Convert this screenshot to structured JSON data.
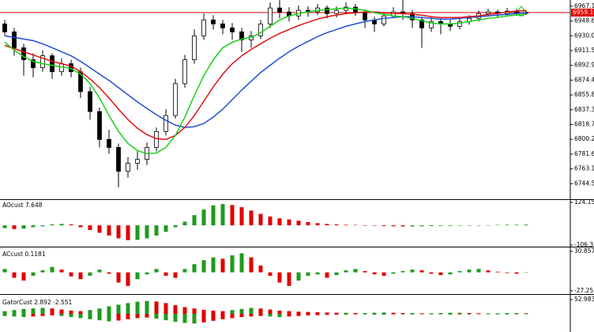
{
  "chart_data": [
    {
      "type": "candlestick",
      "ylim": [
        6725,
        6975
      ],
      "yticks": [
        6967.15,
        {
          "value": 6948.6,
          "label": "6948.60"
        },
        6930.05,
        {
          "value": 6911.5,
          "label": "6911.50"
        },
        6892.95,
        {
          "value": 6874.4,
          "label": "6874.40"
        },
        6855.85,
        {
          "value": 6837.3,
          "label": "6837.30"
        },
        6818.75,
        {
          "value": 6800.2,
          "label": "6800.20"
        },
        6781.65,
        {
          "value": 6763.1,
          "label": "6763.10"
        },
        6744.55
      ],
      "current_price": 6959.19,
      "price_line_color": "#e00000",
      "up_color": "#ffffff",
      "down_color": "#000000",
      "outline_color": "#000000",
      "open": [
        6945,
        6935,
        6915,
        6900,
        6890,
        6905,
        6885,
        6895,
        6885,
        6860,
        6835,
        6800,
        6790,
        6760,
        6770,
        6775,
        6790,
        6810,
        6830,
        6870,
        6900,
        6930,
        6950,
        6945,
        6940,
        6935,
        6925,
        6930,
        6945,
        6965,
        6960,
        6955,
        6962,
        6960,
        6965,
        6958,
        6962,
        6966,
        6960,
        6950,
        6945,
        6955,
        6960,
        6958,
        6950,
        6940,
        6948,
        6945,
        6942,
        6948,
        6952,
        6958,
        6960,
        6958,
        6961,
        6959
      ],
      "high": [
        6950,
        6940,
        6920,
        6908,
        6912,
        6908,
        6902,
        6900,
        6890,
        6866,
        6840,
        6812,
        6795,
        6778,
        6785,
        6796,
        6815,
        6838,
        6876,
        6906,
        6938,
        6958,
        6956,
        6950,
        6946,
        6940,
        6936,
        6950,
        6972,
        6975,
        6966,
        6968,
        6967,
        6970,
        6968,
        6967,
        6972,
        6970,
        6963,
        6954,
        6960,
        6966,
        6975,
        6962,
        6954,
        6953,
        6952,
        6950,
        6952,
        6956,
        6962,
        6964,
        6963,
        6965,
        6964,
        6962
      ],
      "low": [
        6930,
        6905,
        6880,
        6878,
        6885,
        6876,
        6880,
        6878,
        6852,
        6825,
        6790,
        6782,
        6740,
        6752,
        6762,
        6768,
        6785,
        6805,
        6826,
        6865,
        6895,
        6925,
        6938,
        6932,
        6925,
        6910,
        6915,
        6926,
        6940,
        6952,
        6948,
        6950,
        6954,
        6956,
        6952,
        6953,
        6958,
        6955,
        6940,
        6935,
        6942,
        6952,
        6950,
        6940,
        6915,
        6935,
        6932,
        6936,
        6938,
        6944,
        6948,
        6954,
        6953,
        6955,
        6955,
        6956
      ],
      "close": [
        6935,
        6915,
        6900,
        6890,
        6905,
        6885,
        6895,
        6885,
        6860,
        6835,
        6800,
        6790,
        6760,
        6770,
        6775,
        6790,
        6810,
        6830,
        6870,
        6900,
        6930,
        6950,
        6945,
        6940,
        6935,
        6925,
        6930,
        6945,
        6965,
        6960,
        6955,
        6962,
        6960,
        6965,
        6958,
        6962,
        6966,
        6960,
        6950,
        6945,
        6955,
        6960,
        6958,
        6950,
        6940,
        6948,
        6945,
        6942,
        6948,
        6952,
        6958,
        6960,
        6958,
        6961,
        6959,
        6959.19
      ],
      "series": [
        {
          "color": "#1f4fd1",
          "values": [
            6930,
            6928,
            6926,
            6924,
            6920,
            6915,
            6910,
            6905,
            6898,
            6890,
            6882,
            6874,
            6865,
            6856,
            6847,
            6839,
            6831,
            6824,
            6818,
            6815,
            6816,
            6820,
            6828,
            6838,
            6850,
            6862,
            6873,
            6884,
            6893,
            6902,
            6910,
            6917,
            6923,
            6929,
            6934,
            6938,
            6942,
            6945,
            6948,
            6950,
            6952,
            6953,
            6954,
            6954,
            6953,
            6952,
            6951,
            6951,
            6952,
            6953,
            6954,
            6955,
            6956,
            6957,
            6958,
            6959
          ]
        },
        {
          "color": "#e01010",
          "values": [
            6918,
            6914,
            6910,
            6906,
            6902,
            6898,
            6895,
            6892,
            6885,
            6876,
            6865,
            6852,
            6838,
            6825,
            6814,
            6806,
            6801,
            6800,
            6805,
            6815,
            6830,
            6848,
            6866,
            6882,
            6895,
            6905,
            6913,
            6920,
            6927,
            6933,
            6938,
            6943,
            6947,
            6951,
            6954,
            6956,
            6958,
            6959,
            6960,
            6960,
            6959,
            6958,
            6958,
            6957,
            6956,
            6954,
            6953,
            6953,
            6953,
            6954,
            6955,
            6957,
            6958,
            6960,
            6961,
            6962
          ]
        },
        {
          "color": "#16d216",
          "values": [
            6922,
            6912,
            6904,
            6898,
            6895,
            6893,
            6891,
            6889,
            6882,
            6870,
            6852,
            6830,
            6810,
            6795,
            6786,
            6782,
            6783,
            6790,
            6805,
            6828,
            6855,
            6880,
            6900,
            6915,
            6922,
            6926,
            6928,
            6934,
            6942,
            6950,
            6955,
            6958,
            6960,
            6962,
            6963,
            6964,
            6965,
            6964,
            6962,
            6959,
            6957,
            6955,
            6954,
            6952,
            6949,
            6946,
            6945,
            6945,
            6946,
            6948,
            6950,
            6952,
            6953,
            6955,
            6956,
            6957
          ]
        }
      ]
    },
    {
      "type": "histogram",
      "title": "AOcust 7.648",
      "ylim": [
        -106.313,
        124.152
      ],
      "yticks": [
        124.152,
        -106.313
      ],
      "up_color": "#1e9a1e",
      "down_color": "#e00000",
      "values": [
        -15,
        -20,
        -18,
        -10,
        -5,
        5,
        8,
        5,
        -10,
        -25,
        -40,
        -55,
        -70,
        -80,
        -78,
        -70,
        -55,
        -35,
        -10,
        20,
        55,
        85,
        108,
        115,
        110,
        98,
        80,
        62,
        48,
        38,
        32,
        25,
        18,
        12,
        8,
        5,
        3,
        2,
        0,
        -2,
        -4,
        -5,
        -6,
        -6,
        -5,
        -4,
        -3,
        -3,
        -2,
        -1,
        0,
        1,
        2,
        3,
        3,
        4
      ]
    },
    {
      "type": "histogram",
      "title": "ACcust 0.1181",
      "ylim": [
        -27.253,
        30.857
      ],
      "yticks": [
        {
          "value": 30.857,
          "label": "30.8570"
        },
        {
          "value": -27.253,
          "label": "-27.2530"
        }
      ],
      "up_color": "#1e9a1e",
      "down_color": "#e00000",
      "values": [
        5,
        -8,
        -12,
        -5,
        3,
        8,
        4,
        -6,
        -10,
        -5,
        4,
        -2,
        -15,
        -20,
        -10,
        -3,
        5,
        -5,
        -8,
        5,
        12,
        18,
        22,
        20,
        25,
        28,
        22,
        10,
        -5,
        -15,
        -20,
        -12,
        -5,
        -3,
        -8,
        -4,
        3,
        5,
        2,
        -3,
        -5,
        -2,
        2,
        4,
        3,
        -2,
        -4,
        -3,
        2,
        4,
        5,
        3,
        1,
        -1,
        -2,
        0
      ]
    },
    {
      "type": "gator",
      "title": "GatorCust 2.892 -2.551",
      "ylim": [
        -52.983,
        52.983
      ],
      "yticks": [
        52.983
      ],
      "up_color": "#1e9a1e",
      "down_color": "#e00000",
      "series": [
        {
          "values": [
            10,
            14,
            18,
            20,
            22,
            20,
            16,
            12,
            10,
            14,
            20,
            28,
            34,
            40,
            45,
            48,
            46,
            40,
            32,
            25,
            20,
            15,
            12,
            10,
            14,
            18,
            22,
            20,
            16,
            12,
            10,
            8,
            7,
            6,
            5,
            4,
            4,
            3,
            3,
            4,
            5,
            4,
            3,
            3,
            2,
            2,
            3,
            4,
            4,
            3,
            2,
            2,
            2,
            3,
            3,
            2
          ]
        },
        {
          "values": [
            -8,
            -10,
            -12,
            -10,
            -8,
            -6,
            -8,
            -12,
            -16,
            -20,
            -24,
            -28,
            -25,
            -20,
            -16,
            -14,
            -18,
            -24,
            -30,
            -34,
            -36,
            -32,
            -26,
            -20,
            -16,
            -12,
            -10,
            -8,
            -10,
            -12,
            -10,
            -8,
            -6,
            -5,
            -4,
            -3,
            -3,
            -2,
            -2,
            -3,
            -3,
            -2,
            -2,
            -2,
            -1,
            -2,
            -2,
            -3,
            -2,
            -2,
            -1,
            -1,
            -2,
            -2,
            -1,
            -1
          ]
        }
      ]
    }
  ]
}
